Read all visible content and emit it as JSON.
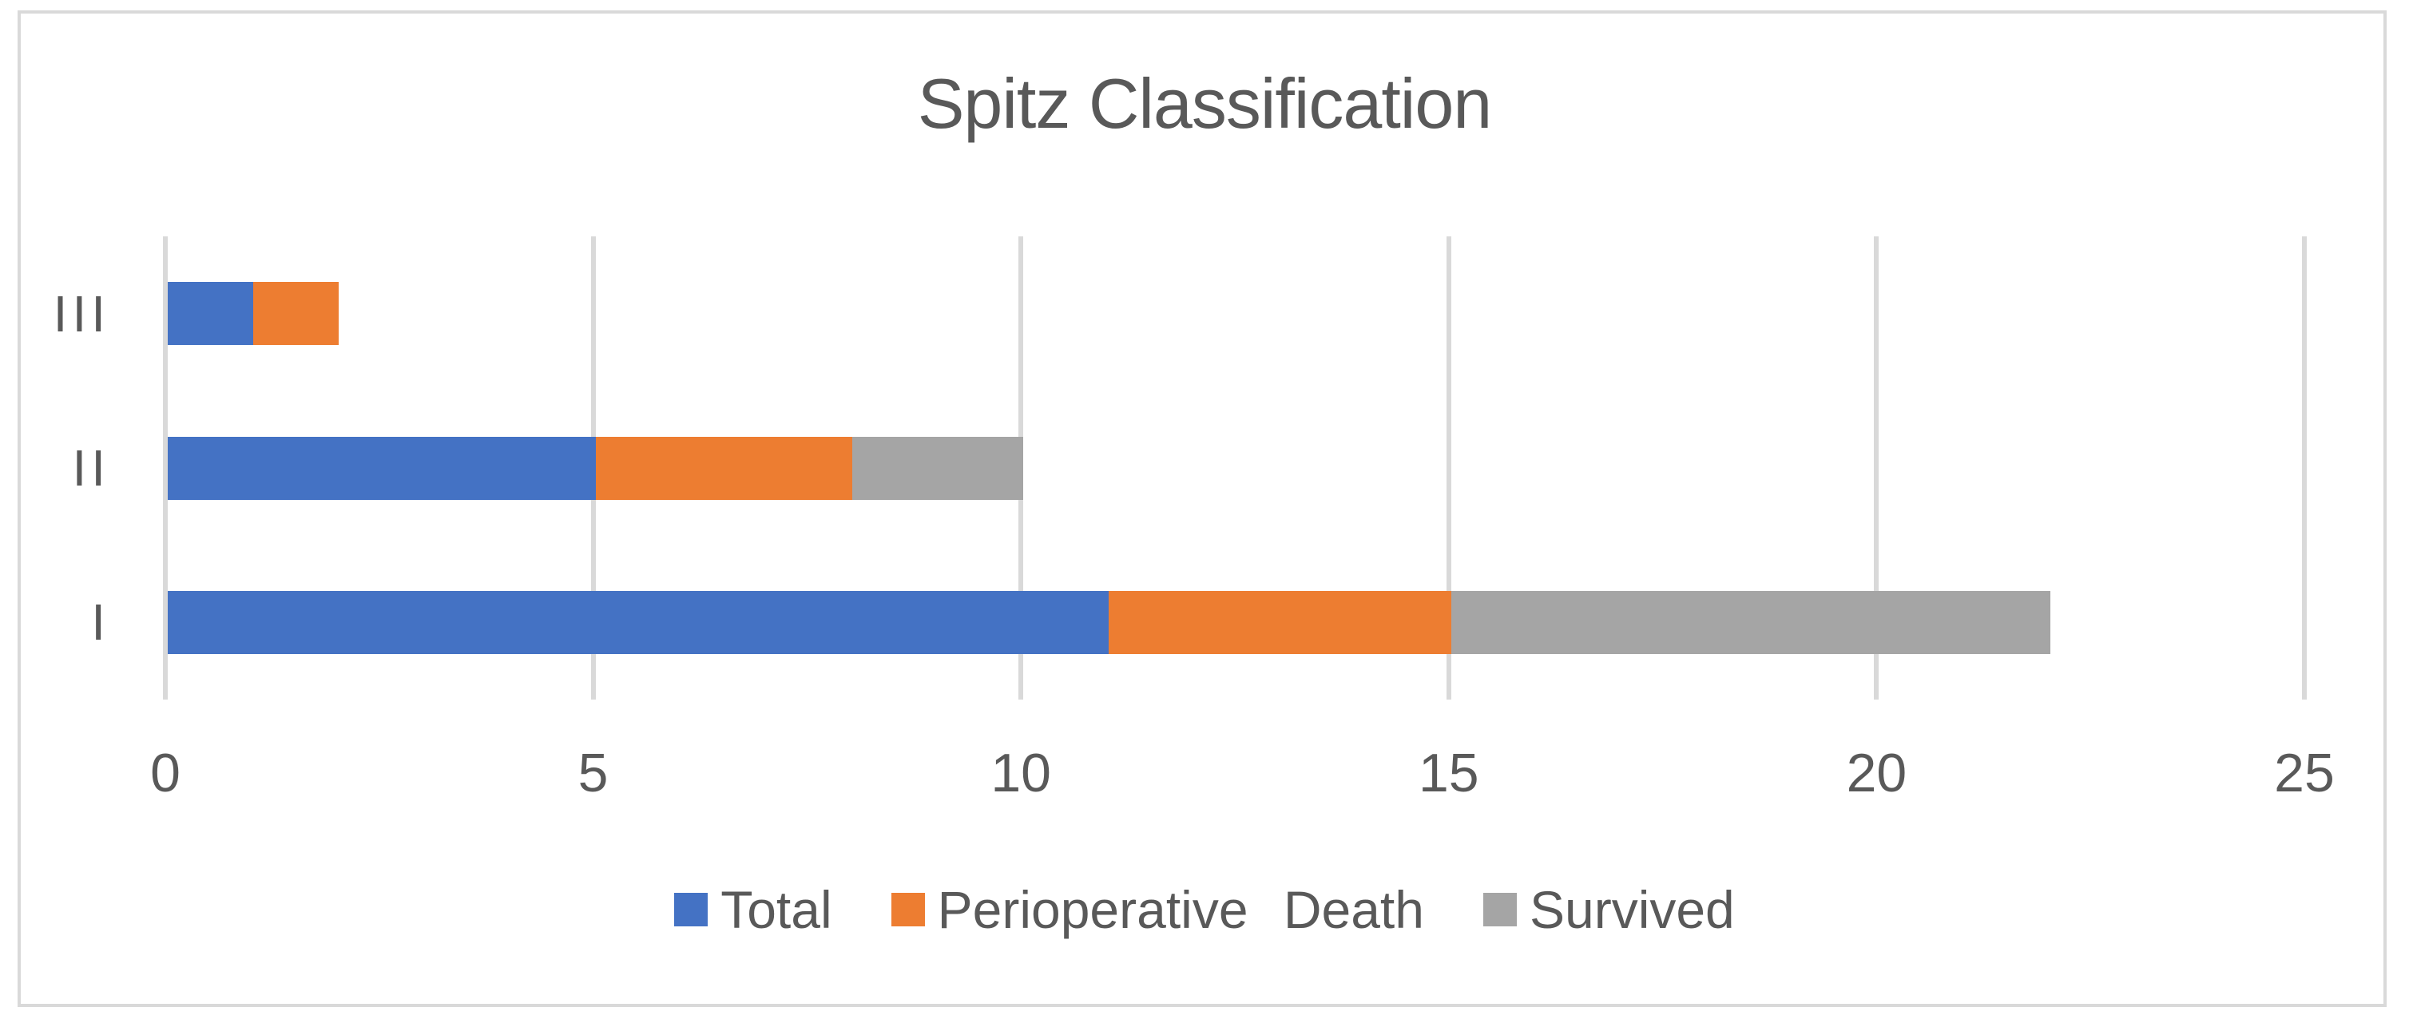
{
  "figure": {
    "background": "#FFFFFF",
    "border_color": "#D9D9D9"
  },
  "chart_data": {
    "type": "bar",
    "orientation": "horizontal",
    "stacked": true,
    "title": "Spitz Classification",
    "title_color": "#595959",
    "text_color": "#595959",
    "gridline_color": "#D9D9D9",
    "gridlines": "vertical",
    "categories": [
      "III",
      "II",
      "I"
    ],
    "series": [
      {
        "name": "Total",
        "color": "#4472C4",
        "values": [
          1,
          5,
          11
        ]
      },
      {
        "name": "Perioperative Death",
        "color": "#ED7D31",
        "values": [
          1,
          3,
          4
        ]
      },
      {
        "name": "Survived",
        "color": "#A5A5A5",
        "values": [
          0,
          2,
          7
        ]
      }
    ],
    "x_ticks": [
      0,
      5,
      10,
      15,
      20,
      25
    ],
    "xlim": [
      0,
      25
    ],
    "legend_position": "bottom"
  }
}
